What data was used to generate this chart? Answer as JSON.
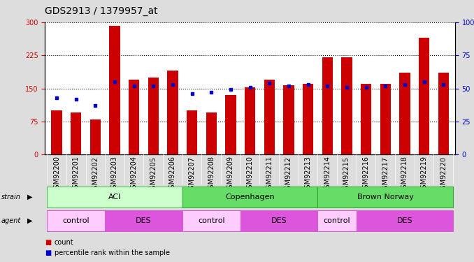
{
  "title": "GDS2913 / 1379957_at",
  "samples": [
    "GSM92200",
    "GSM92201",
    "GSM92202",
    "GSM92203",
    "GSM92204",
    "GSM92205",
    "GSM92206",
    "GSM92207",
    "GSM92208",
    "GSM92209",
    "GSM92210",
    "GSM92211",
    "GSM92212",
    "GSM92213",
    "GSM92214",
    "GSM92215",
    "GSM92216",
    "GSM92217",
    "GSM92218",
    "GSM92219",
    "GSM92220"
  ],
  "count_values": [
    100,
    95,
    80,
    292,
    170,
    175,
    190,
    100,
    95,
    135,
    152,
    170,
    158,
    160,
    220,
    220,
    160,
    160,
    185,
    265,
    185
  ],
  "percentile_values": [
    43,
    42,
    37,
    55,
    52,
    52,
    53,
    46,
    47,
    49,
    51,
    54,
    52,
    53,
    52,
    51,
    51,
    52,
    53,
    55,
    53
  ],
  "bar_color": "#cc0000",
  "dot_color": "#0000cc",
  "ylim_left": [
    0,
    300
  ],
  "ylim_right": [
    0,
    100
  ],
  "yticks_left": [
    0,
    75,
    150,
    225,
    300
  ],
  "yticks_right": [
    0,
    25,
    50,
    75,
    100
  ],
  "strain_groups": [
    {
      "label": "ACI",
      "start": 0,
      "end": 6,
      "color": "#ccffcc",
      "edge": "#55bb55"
    },
    {
      "label": "Copenhagen",
      "start": 7,
      "end": 13,
      "color": "#66dd66",
      "edge": "#33aa33"
    },
    {
      "label": "Brown Norway",
      "start": 14,
      "end": 20,
      "color": "#66dd66",
      "edge": "#33aa33"
    }
  ],
  "agent_groups": [
    {
      "label": "control",
      "start": 0,
      "end": 2,
      "color": "#ffccff",
      "edge": "#cc66cc"
    },
    {
      "label": "DES",
      "start": 3,
      "end": 6,
      "color": "#dd55dd",
      "edge": "#cc66cc"
    },
    {
      "label": "control",
      "start": 7,
      "end": 9,
      "color": "#ffccff",
      "edge": "#cc66cc"
    },
    {
      "label": "DES",
      "start": 10,
      "end": 13,
      "color": "#dd55dd",
      "edge": "#cc66cc"
    },
    {
      "label": "control",
      "start": 14,
      "end": 15,
      "color": "#ffccff",
      "edge": "#cc66cc"
    },
    {
      "label": "DES",
      "start": 16,
      "end": 20,
      "color": "#dd55dd",
      "edge": "#cc66cc"
    }
  ],
  "background_color": "#dddddd",
  "plot_bg_color": "#ffffff",
  "tick_bg_color": "#cccccc",
  "title_fontsize": 10,
  "tick_fontsize": 7,
  "label_fontsize": 8,
  "bar_width": 0.55
}
